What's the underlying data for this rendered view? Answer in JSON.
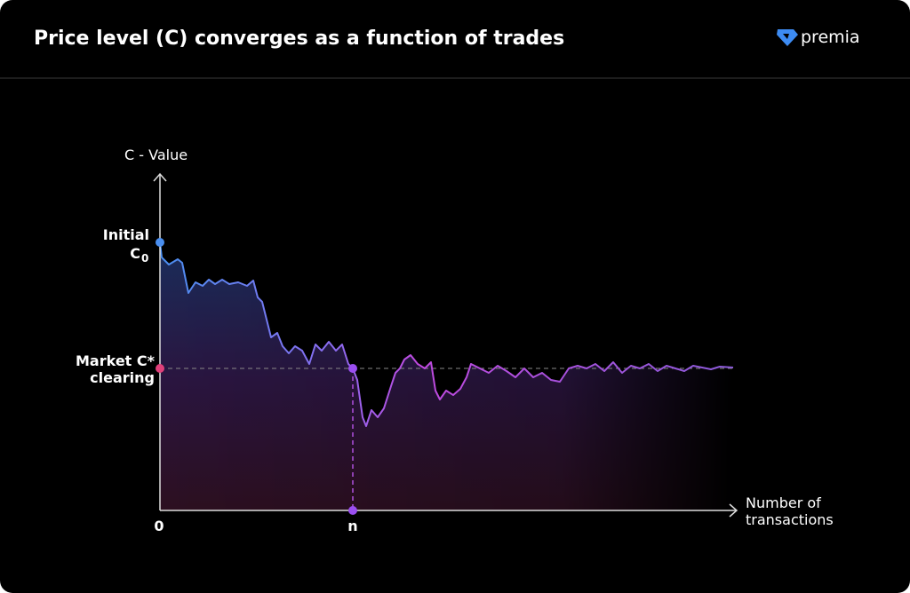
{
  "header": {
    "title": "Price level (C) converges as a function of trades",
    "brand": "premia"
  },
  "diagram": {
    "y_axis_label": "C - Value",
    "x_axis_label": [
      "Number of",
      "transactions"
    ],
    "initial": {
      "text": "Initial",
      "symbol": "C",
      "subscript": "0"
    },
    "clearing": [
      "Market C*",
      "clearing"
    ],
    "x_origin": "0",
    "x_n": "n"
  }
}
